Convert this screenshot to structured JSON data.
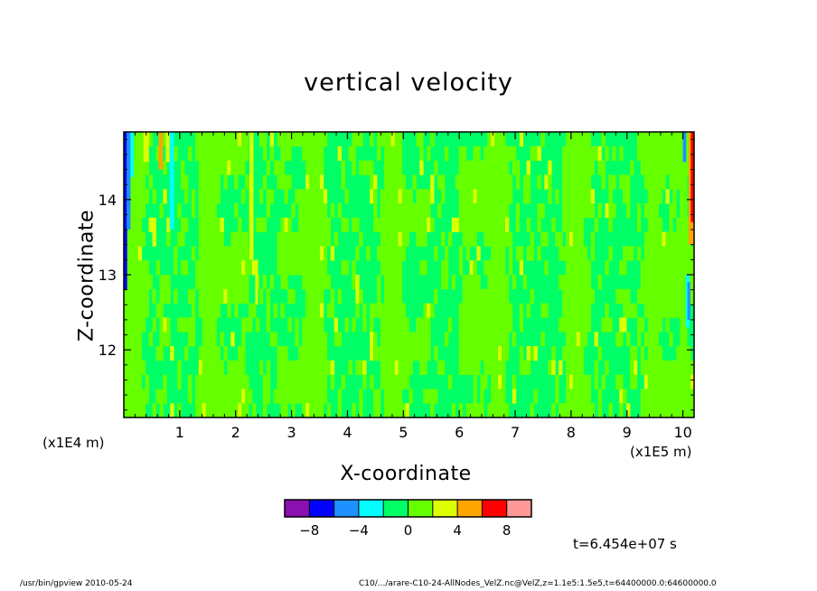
{
  "chart_data": {
    "type": "heatmap",
    "title": "vertical velocity",
    "xlabel": "X-coordinate",
    "ylabel": "Z-coordinate",
    "x_unit_note": "(x1E5 m)",
    "z_unit_note": "(x1E4 m)",
    "xlim": [
      0,
      10.2
    ],
    "ylim": [
      11.1,
      14.9
    ],
    "x_ticks": [
      1,
      2,
      3,
      4,
      5,
      6,
      7,
      8,
      9,
      10
    ],
    "y_ticks": [
      12,
      13,
      14
    ],
    "x_tick_labels": [
      "1",
      "2",
      "3",
      "4",
      "5",
      "6",
      "7",
      "8",
      "9",
      "10"
    ],
    "y_tick_labels": [
      "12",
      "13",
      "14"
    ],
    "colorbar": {
      "colors": [
        "#8a10b0",
        "#0000ff",
        "#1e90ff",
        "#00ffff",
        "#00ff66",
        "#66ff00",
        "#ddff00",
        "#ffa500",
        "#ff0000",
        "#ff9999"
      ],
      "tick_values": [
        -8,
        -4,
        0,
        4,
        8
      ],
      "tick_labels": [
        "−8",
        "−4",
        "0",
        "4",
        "8"
      ],
      "range": [
        -10,
        10
      ]
    },
    "field_summary": {
      "dominant_range": [
        -2,
        2
      ],
      "extremes_near_edges": true
    },
    "grid": false
  },
  "annotations": {
    "time": "t=6.454e+07 s",
    "footer_left": "/usr/bin/gpview   2010-05-24",
    "footer_right": "C10/.../arare-C10-24-AllNodes_VelZ.nc@VelZ,z=1.1e5:1.5e5,t=64400000.0:64600000.0"
  }
}
